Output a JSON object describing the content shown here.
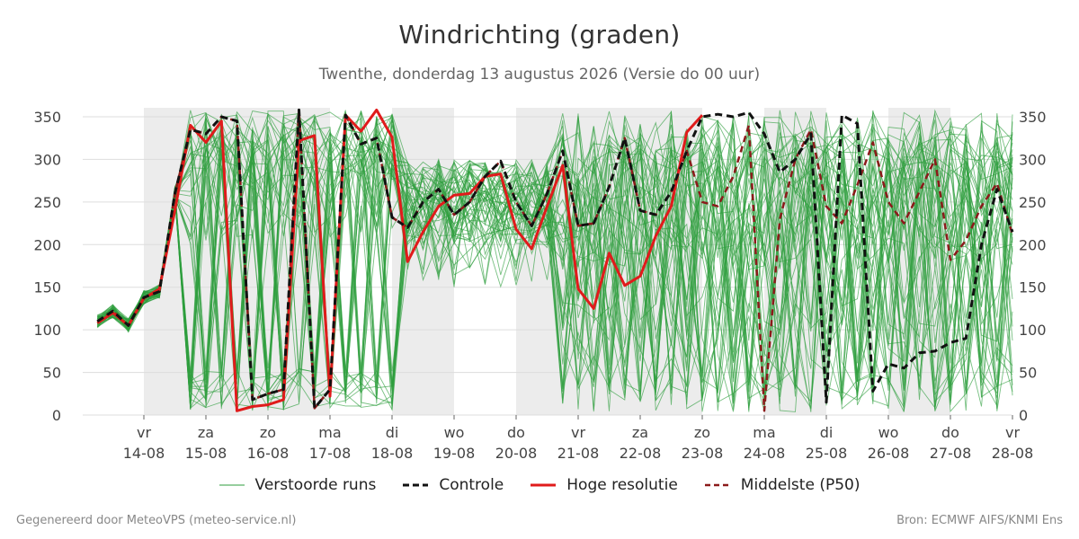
{
  "header": {
    "title": "Windrichting (graden)",
    "subtitle": "Twenthe, donderdag 13 augustus 2026 (Versie do 00 uur)"
  },
  "footer": {
    "left": "Gegenereerd door MeteoVPS (meteo-service.nl)",
    "right": "Bron: ECMWF AIFS/KNMI Ens"
  },
  "legend": [
    {
      "label": "Verstoorde runs",
      "color": "#2e9e3e",
      "style": "thin-solid"
    },
    {
      "label": "Controle",
      "color": "#111111",
      "style": "dashed"
    },
    {
      "label": "Hoge resolutie",
      "color": "#e01b1b",
      "style": "thick-solid"
    },
    {
      "label": "Middelste (P50)",
      "color": "#8b1a1a",
      "style": "dashed"
    }
  ],
  "chart_data": {
    "type": "line",
    "title": "Windrichting (graden)",
    "subtitle": "Twenthe, donderdag 13 augustus 2026 (Versie do 00 uur)",
    "ylim": [
      0,
      360
    ],
    "yticks": [
      0,
      50,
      100,
      150,
      200,
      250,
      300,
      350
    ],
    "grid": true,
    "legend_position": "bottom",
    "xlim": [
      -0.75,
      14
    ],
    "x_ticks": [
      {
        "day": 0,
        "dow": "vr",
        "date": "14-08"
      },
      {
        "day": 1,
        "dow": "za",
        "date": "15-08"
      },
      {
        "day": 2,
        "dow": "zo",
        "date": "16-08"
      },
      {
        "day": 3,
        "dow": "ma",
        "date": "17-08"
      },
      {
        "day": 4,
        "dow": "di",
        "date": "18-08"
      },
      {
        "day": 5,
        "dow": "wo",
        "date": "19-08"
      },
      {
        "day": 6,
        "dow": "do",
        "date": "20-08"
      },
      {
        "day": 7,
        "dow": "vr",
        "date": "21-08"
      },
      {
        "day": 8,
        "dow": "za",
        "date": "22-08"
      },
      {
        "day": 9,
        "dow": "zo",
        "date": "23-08"
      },
      {
        "day": 10,
        "dow": "ma",
        "date": "24-08"
      },
      {
        "day": 11,
        "dow": "di",
        "date": "25-08"
      },
      {
        "day": 12,
        "dow": "wo",
        "date": "26-08"
      },
      {
        "day": 13,
        "dow": "do",
        "date": "27-08"
      },
      {
        "day": 14,
        "dow": "vr",
        "date": "28-08"
      }
    ],
    "weekend_bands": [
      [
        0,
        2
      ],
      [
        2,
        3
      ],
      [
        4,
        5
      ],
      [
        6,
        9
      ],
      [
        10,
        11
      ],
      [
        12,
        13
      ]
    ],
    "series": [
      {
        "name": "Hoge resolutie",
        "color": "#e01b1b",
        "x": [
          -0.75,
          -0.5,
          -0.25,
          0,
          0.25,
          0.5,
          0.75,
          1,
          1.25,
          1.5,
          1.75,
          2,
          2.25,
          2.5,
          2.75,
          3,
          3.25,
          3.5,
          3.75,
          4,
          4.25,
          4.5,
          4.75,
          5,
          5.25,
          5.5,
          5.75,
          6,
          6.25,
          6.5,
          6.75,
          7,
          7.25,
          7.5,
          7.75,
          8,
          8.25,
          8.5,
          8.75,
          9
        ],
        "y": [
          108,
          120,
          105,
          137,
          148,
          240,
          340,
          320,
          345,
          5,
          10,
          12,
          18,
          322,
          328,
          22,
          352,
          333,
          358,
          326,
          180,
          215,
          245,
          258,
          260,
          280,
          283,
          218,
          195,
          245,
          293,
          148,
          125,
          190,
          152,
          163,
          210,
          245,
          332,
          352
        ]
      },
      {
        "name": "Controle",
        "color": "#111111",
        "x": [
          -0.75,
          -0.5,
          -0.25,
          0,
          0.25,
          0.5,
          0.75,
          1,
          1.25,
          1.5,
          1.75,
          2,
          2.25,
          2.5,
          2.75,
          3,
          3.25,
          3.5,
          3.75,
          4,
          4.25,
          4.5,
          4.75,
          5,
          5.25,
          5.5,
          5.75,
          6,
          6.25,
          6.5,
          6.75,
          7,
          7.25,
          7.5,
          7.75,
          8,
          8.25,
          8.5,
          8.75,
          9,
          9.25,
          9.5,
          9.75,
          10,
          10.25,
          10.5,
          10.75,
          11,
          11.25,
          11.5,
          11.75,
          12,
          12.25,
          12.5,
          12.75,
          13,
          13.25,
          13.5,
          13.75,
          14
        ],
        "y": [
          110,
          122,
          105,
          138,
          145,
          260,
          335,
          330,
          350,
          345,
          18,
          25,
          30,
          358,
          8,
          30,
          352,
          318,
          325,
          232,
          220,
          250,
          265,
          235,
          250,
          280,
          298,
          250,
          222,
          260,
          310,
          222,
          225,
          268,
          325,
          240,
          235,
          262,
          310,
          350,
          353,
          350,
          355,
          330,
          285,
          300,
          330,
          15,
          352,
          342,
          28,
          60,
          55,
          73,
          75,
          85,
          90,
          200,
          265,
          215
        ]
      },
      {
        "name": "Middelste (P50)",
        "color": "#8b1a1a",
        "x": [
          -0.75,
          -0.5,
          -0.25,
          0,
          0.25,
          0.5,
          0.75,
          1,
          1.25,
          1.5,
          1.75,
          2,
          2.25,
          2.5,
          2.75,
          3,
          3.25,
          3.5,
          3.75,
          4,
          4.25,
          4.5,
          4.75,
          5,
          5.25,
          5.5,
          5.75,
          6,
          6.25,
          6.5,
          6.75,
          7,
          7.25,
          7.5,
          7.75,
          8,
          8.25,
          8.5,
          8.75,
          9,
          9.25,
          9.5,
          9.75,
          10,
          10.25,
          10.5,
          10.75,
          11,
          11.25,
          11.5,
          11.75,
          12,
          12.25,
          12.5,
          12.75,
          13,
          13.25,
          13.5,
          13.75,
          14
        ],
        "y": [
          110,
          122,
          105,
          138,
          145,
          260,
          335,
          330,
          350,
          345,
          18,
          25,
          30,
          358,
          8,
          30,
          352,
          318,
          325,
          232,
          220,
          250,
          265,
          235,
          250,
          280,
          298,
          250,
          222,
          260,
          310,
          222,
          225,
          268,
          325,
          240,
          235,
          262,
          310,
          250,
          245,
          280,
          340,
          5,
          230,
          300,
          335,
          245,
          225,
          270,
          320,
          250,
          225,
          262,
          300,
          182,
          205,
          245,
          272,
          212
        ]
      }
    ],
    "perturbed_runs_count": 50
  }
}
